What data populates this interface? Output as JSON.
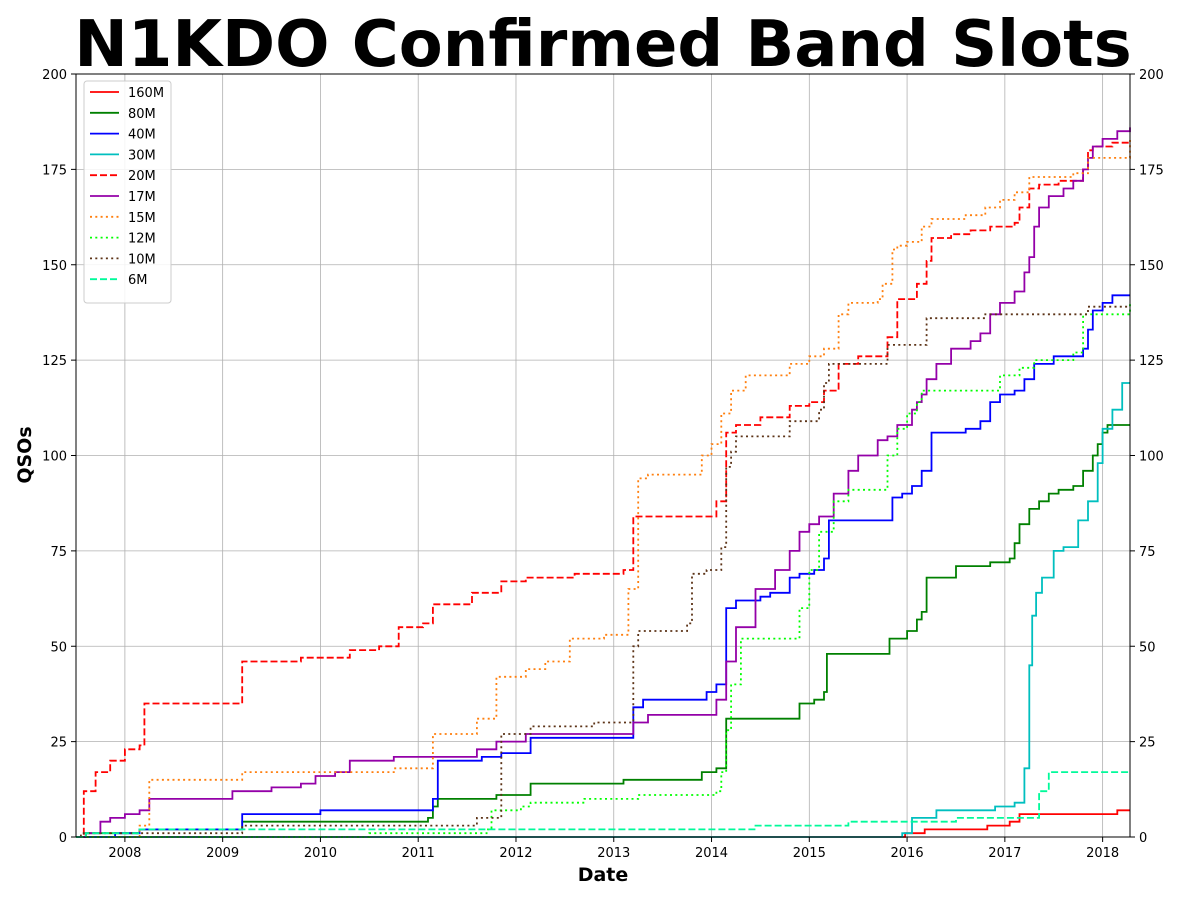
{
  "chart_data": {
    "type": "line",
    "title": "N1KDO Confirmed Band Slots",
    "xlabel": "Date",
    "ylabel": "QSOs",
    "xlim": [
      2007.5,
      2018.28
    ],
    "ylim": [
      0,
      200
    ],
    "x_ticks": [
      2008,
      2009,
      2010,
      2011,
      2012,
      2013,
      2014,
      2015,
      2016,
      2017,
      2018
    ],
    "x_tick_labels": [
      "2008",
      "2009",
      "2010",
      "2011",
      "2012",
      "2013",
      "2014",
      "2015",
      "2016",
      "2017",
      "2018"
    ],
    "y_ticks": [
      0,
      25,
      50,
      75,
      100,
      125,
      150,
      175,
      200
    ],
    "y_tick_labels": [
      "0",
      "25",
      "50",
      "75",
      "100",
      "125",
      "150",
      "175",
      "200"
    ],
    "grid": true,
    "legend_position": "top-left",
    "series": [
      {
        "name": "160M",
        "color": "#ff0000",
        "style": "solid",
        "x": [
          2007.5,
          2015.98,
          2016.18,
          2016.82,
          2017.05,
          2017.15,
          2018.15,
          2018.28
        ],
        "y": [
          0,
          1,
          2,
          3,
          4,
          6,
          7,
          7
        ]
      },
      {
        "name": "80M",
        "color": "#008000",
        "style": "solid",
        "x": [
          2007.5,
          2007.6,
          2008.15,
          2009.2,
          2011.1,
          2011.15,
          2011.2,
          2011.8,
          2012.15,
          2013.1,
          2013.8,
          2013.9,
          2014.05,
          2014.15,
          2014.8,
          2014.9,
          2015.05,
          2015.15,
          2015.18,
          2015.82,
          2016.0,
          2016.1,
          2016.15,
          2016.2,
          2016.5,
          2016.85,
          2017.05,
          2017.1,
          2017.15,
          2017.25,
          2017.35,
          2017.45,
          2017.55,
          2017.7,
          2017.8,
          2017.9,
          2017.95,
          2018.0,
          2018.05,
          2018.1,
          2018.28
        ],
        "y": [
          0,
          1,
          2,
          4,
          5,
          8,
          10,
          11,
          14,
          15,
          15,
          17,
          18,
          31,
          31,
          35,
          36,
          38,
          48,
          52,
          54,
          57,
          59,
          68,
          71,
          72,
          73,
          77,
          82,
          86,
          88,
          90,
          91,
          92,
          96,
          100,
          103,
          106,
          108,
          108,
          108
        ]
      },
      {
        "name": "40M",
        "color": "#0000ff",
        "style": "solid",
        "x": [
          2007.5,
          2007.9,
          2008.15,
          2009.15,
          2009.2,
          2010.0,
          2011.1,
          2011.15,
          2011.2,
          2011.65,
          2011.85,
          2012.15,
          2012.95,
          2013.2,
          2013.3,
          2013.85,
          2013.95,
          2014.05,
          2014.15,
          2014.25,
          2014.5,
          2014.6,
          2014.8,
          2014.9,
          2015.05,
          2015.15,
          2015.2,
          2015.8,
          2015.85,
          2015.95,
          2016.05,
          2016.15,
          2016.25,
          2016.6,
          2016.75,
          2016.85,
          2016.95,
          2017.1,
          2017.2,
          2017.3,
          2017.5,
          2017.8,
          2017.85,
          2017.9,
          2018.0,
          2018.1,
          2018.28
        ],
        "y": [
          0,
          1,
          2,
          2,
          6,
          7,
          7,
          10,
          20,
          21,
          22,
          26,
          26,
          34,
          36,
          36,
          38,
          40,
          60,
          62,
          63,
          64,
          68,
          69,
          70,
          73,
          83,
          83,
          89,
          90,
          92,
          96,
          106,
          107,
          109,
          114,
          116,
          117,
          120,
          124,
          126,
          128,
          133,
          138,
          140,
          142,
          142
        ]
      },
      {
        "name": "30M",
        "color": "#00bfbf",
        "style": "solid",
        "x": [
          2007.5,
          2015.95,
          2016.05,
          2016.3,
          2016.9,
          2017.1,
          2017.2,
          2017.25,
          2017.28,
          2017.32,
          2017.38,
          2017.5,
          2017.6,
          2017.75,
          2017.85,
          2017.95,
          2018.0,
          2018.1,
          2018.2,
          2018.28
        ],
        "y": [
          0,
          1,
          5,
          7,
          8,
          9,
          18,
          45,
          58,
          64,
          68,
          75,
          76,
          83,
          88,
          98,
          107,
          112,
          119,
          119
        ]
      },
      {
        "name": "20M",
        "color": "#ff0000",
        "style": "dashed",
        "x": [
          2007.5,
          2007.58,
          2007.7,
          2007.85,
          2008.0,
          2008.15,
          2008.2,
          2009.15,
          2009.2,
          2009.8,
          2010.3,
          2010.6,
          2010.8,
          2011.05,
          2011.15,
          2011.55,
          2011.85,
          2012.1,
          2012.6,
          2013.1,
          2013.2,
          2013.25,
          2014.05,
          2014.15,
          2014.25,
          2014.5,
          2014.8,
          2015.0,
          2015.15,
          2015.3,
          2015.5,
          2015.8,
          2015.9,
          2016.1,
          2016.2,
          2016.25,
          2016.45,
          2016.65,
          2016.85,
          2017.1,
          2017.15,
          2017.25,
          2017.35,
          2017.55,
          2017.8,
          2017.85,
          2017.9,
          2018.1,
          2018.28
        ],
        "y": [
          0,
          12,
          17,
          20,
          23,
          24,
          35,
          35,
          46,
          47,
          49,
          50,
          55,
          56,
          61,
          64,
          67,
          68,
          69,
          70,
          84,
          84,
          88,
          106,
          108,
          110,
          113,
          114,
          117,
          124,
          126,
          131,
          141,
          145,
          151,
          157,
          158,
          159,
          160,
          161,
          165,
          170,
          171,
          172,
          175,
          180,
          181,
          182,
          182
        ]
      },
      {
        "name": "17M",
        "color": "#9400a8",
        "style": "solid",
        "x": [
          2007.5,
          2007.6,
          2007.75,
          2007.85,
          2008.0,
          2008.15,
          2008.25,
          2008.8,
          2009.1,
          2009.5,
          2009.8,
          2009.95,
          2010.15,
          2010.3,
          2010.75,
          2011.2,
          2011.6,
          2011.8,
          2012.1,
          2012.8,
          2013.2,
          2013.35,
          2013.9,
          2014.05,
          2014.15,
          2014.25,
          2014.45,
          2014.65,
          2014.8,
          2014.9,
          2015.0,
          2015.1,
          2015.25,
          2015.4,
          2015.5,
          2015.7,
          2015.8,
          2015.9,
          2016.05,
          2016.1,
          2016.15,
          2016.2,
          2016.3,
          2016.45,
          2016.65,
          2016.75,
          2016.85,
          2016.95,
          2017.1,
          2017.2,
          2017.25,
          2017.3,
          2017.35,
          2017.45,
          2017.6,
          2017.7,
          2017.8,
          2017.85,
          2017.9,
          2018.0,
          2018.15,
          2018.28
        ],
        "y": [
          0,
          1,
          4,
          5,
          6,
          7,
          10,
          10,
          12,
          13,
          14,
          16,
          17,
          20,
          21,
          21,
          23,
          25,
          27,
          27,
          30,
          32,
          32,
          36,
          46,
          55,
          65,
          70,
          75,
          80,
          82,
          84,
          90,
          96,
          100,
          104,
          105,
          108,
          112,
          114,
          116,
          120,
          124,
          128,
          130,
          132,
          137,
          140,
          143,
          148,
          152,
          160,
          165,
          168,
          170,
          172,
          175,
          178,
          181,
          183,
          185,
          186
        ]
      },
      {
        "name": "15M",
        "color": "#ff7f0e",
        "style": "dotted",
        "x": [
          2007.5,
          2008.15,
          2008.25,
          2009.15,
          2009.2,
          2010.0,
          2010.75,
          2011.15,
          2011.6,
          2011.8,
          2012.1,
          2012.3,
          2012.55,
          2012.9,
          2013.15,
          2013.25,
          2013.35,
          2013.8,
          2013.9,
          2014.0,
          2014.1,
          2014.2,
          2014.35,
          2014.8,
          2015.0,
          2015.15,
          2015.3,
          2015.4,
          2015.7,
          2015.75,
          2015.85,
          2015.9,
          2016.0,
          2016.15,
          2016.25,
          2016.6,
          2016.8,
          2016.95,
          2017.1,
          2017.25,
          2017.5,
          2017.7,
          2017.85,
          2018.28
        ],
        "y": [
          0,
          3,
          15,
          15,
          17,
          17,
          18,
          27,
          31,
          42,
          44,
          46,
          52,
          53,
          65,
          94,
          95,
          95,
          100,
          103,
          111,
          117,
          121,
          124,
          126,
          128,
          137,
          140,
          141,
          145,
          154,
          155,
          156,
          160,
          162,
          163,
          165,
          167,
          169,
          173,
          173,
          174,
          178,
          183
        ]
      },
      {
        "name": "12M",
        "color": "#00ff00",
        "style": "dotted",
        "x": [
          2007.5,
          2010.5,
          2011.7,
          2011.75,
          2012.05,
          2012.15,
          2012.7,
          2013.15,
          2013.25,
          2013.95,
          2014.05,
          2014.1,
          2014.15,
          2014.2,
          2014.3,
          2014.8,
          2014.9,
          2015.0,
          2015.1,
          2015.25,
          2015.4,
          2015.7,
          2015.8,
          2015.9,
          2016.0,
          2016.1,
          2016.15,
          2016.75,
          2016.95,
          2017.15,
          2017.3,
          2017.55,
          2017.7,
          2017.8,
          2018.15,
          2018.28
        ],
        "y": [
          0,
          1,
          2,
          7,
          8,
          9,
          10,
          10,
          11,
          11,
          12,
          17,
          28,
          40,
          52,
          52,
          60,
          70,
          80,
          88,
          91,
          91,
          100,
          107,
          111,
          114,
          117,
          117,
          121,
          123,
          125,
          125,
          127,
          137,
          137,
          140
        ]
      },
      {
        "name": "10M",
        "color": "#5c3317",
        "style": "dotted",
        "x": [
          2007.5,
          2007.55,
          2009.1,
          2009.2,
          2011.15,
          2011.6,
          2011.85,
          2012.1,
          2012.15,
          2012.8,
          2013.15,
          2013.2,
          2013.25,
          2013.75,
          2013.8,
          2013.95,
          2014.1,
          2014.15,
          2014.2,
          2014.25,
          2014.75,
          2014.8,
          2015.1,
          2015.15,
          2015.2,
          2015.75,
          2015.8,
          2016.15,
          2016.2,
          2016.75,
          2016.8,
          2017.0,
          2017.5,
          2017.75,
          2017.85,
          2018.28
        ],
        "y": [
          0,
          1,
          1,
          3,
          3,
          5,
          27,
          27,
          29,
          30,
          30,
          50,
          54,
          56,
          69,
          70,
          76,
          97,
          101,
          105,
          105,
          109,
          112,
          119,
          124,
          124,
          129,
          129,
          136,
          136,
          137,
          137,
          137,
          137,
          139,
          139
        ]
      },
      {
        "name": "6M",
        "color": "#00fa9a",
        "style": "dashed",
        "x": [
          2007.5,
          2007.6,
          2008.15,
          2009.15,
          2011.75,
          2012.15,
          2014.15,
          2014.45,
          2015.15,
          2015.4,
          2015.75,
          2016.1,
          2016.3,
          2016.5,
          2016.9,
          2017.15,
          2017.35,
          2017.45,
          2018.28
        ],
        "y": [
          0,
          1,
          2,
          2,
          2,
          2,
          2,
          3,
          3,
          4,
          4,
          4,
          4,
          5,
          5,
          5,
          12,
          17,
          17
        ]
      }
    ]
  }
}
